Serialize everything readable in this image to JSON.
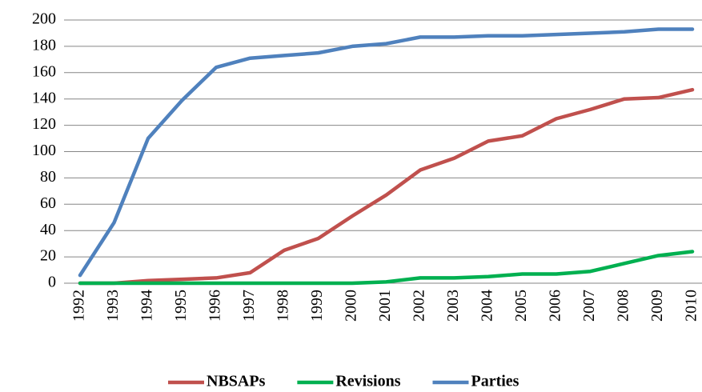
{
  "chart_data": {
    "type": "line",
    "categories": [
      "1992",
      "1993",
      "1994",
      "1995",
      "1996",
      "1997",
      "1998",
      "1999",
      "2000",
      "2001",
      "2002",
      "2003",
      "2004",
      "2005",
      "2006",
      "2007",
      "2008",
      "2009",
      "2010"
    ],
    "series": [
      {
        "name": "NBSAPs",
        "color": "#c0504d",
        "values": [
          0,
          0,
          2,
          3,
          4,
          8,
          25,
          34,
          51,
          67,
          86,
          95,
          108,
          112,
          125,
          132,
          140,
          141,
          147
        ]
      },
      {
        "name": "Revisions",
        "color": "#00b050",
        "values": [
          0,
          0,
          0,
          0,
          0,
          0,
          0,
          0,
          0,
          1,
          4,
          4,
          5,
          7,
          7,
          9,
          15,
          21,
          24
        ]
      },
      {
        "name": "Parties",
        "color": "#4f81bd",
        "values": [
          6,
          46,
          110,
          139,
          164,
          171,
          173,
          175,
          180,
          182,
          187,
          187,
          188,
          188,
          189,
          190,
          191,
          193,
          193
        ]
      }
    ],
    "ylim": [
      0,
      200
    ],
    "yticks": [
      0,
      20,
      40,
      60,
      80,
      100,
      120,
      140,
      160,
      180,
      200
    ],
    "grid": true,
    "legend": "bottom"
  }
}
